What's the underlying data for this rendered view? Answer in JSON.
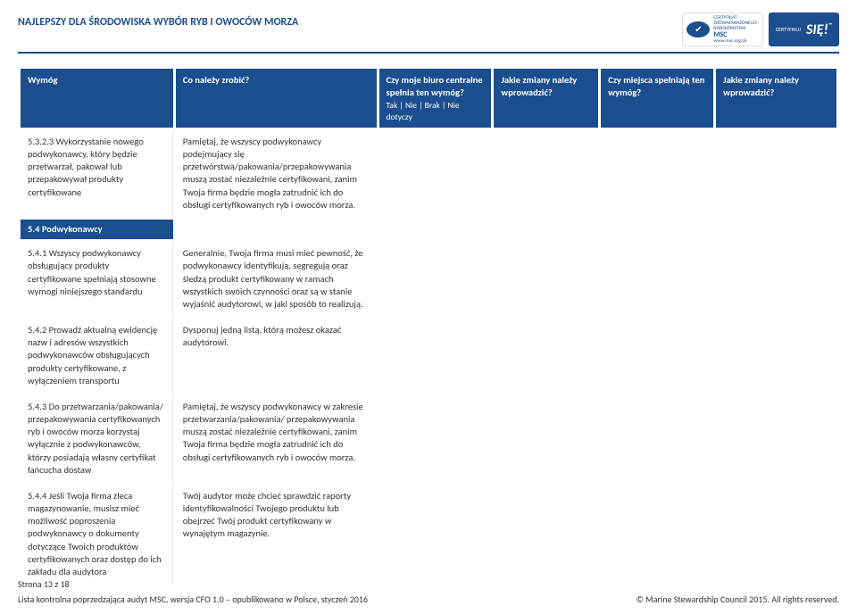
{
  "doc_title": "NAJLEPSZY DLA ŚRODOWISKA WYBÓR RYB I OWOCÓW MORZA",
  "logo_msc": {
    "line1": "CERTYFIKAT",
    "line2": "ZRÓWNOWAŻONEGO",
    "line3": "RYBOŁÓWSTWA",
    "brand": "MSC",
    "url": "www.msc.org/pl"
  },
  "logo_sie": {
    "label": "CERTYFIKUJ",
    "big": "SIĘ!"
  },
  "headers": {
    "c1": "Wymóg",
    "c2": "Co należy zrobić?",
    "c3": "Czy moje biuro centralne spełnia ten wymóg?",
    "c3_sub": "Tak | Nie | Brak | Nie dotyczy",
    "c4": "Jakie zmiany należy wprowadzić?",
    "c5": "Czy miejsca spełniają ten wymóg?",
    "c6": "Jakie zmiany należy wprowadzić?"
  },
  "col_widths": {
    "c1": "19%",
    "c2": "25%",
    "c3": "14%",
    "c4": "13%",
    "c5": "14%",
    "c6": "15%"
  },
  "rows": [
    {
      "req": "5.3.2.3 Wykorzystanie nowego podwykonawcy, który będzie przetwarzał, pakował lub przepakowywał produkty certyfikowane",
      "action": "Pamiętaj, że wszyscy podwykonawcy podejmujący się przetwórstwa/pakowania/przepakowywania muszą zostać niezależnie certyfikowani, zanim Twoja firma będzie mogła zatrudnić ich do obsługi certyfikowanych ryb i owoców morza."
    }
  ],
  "section_label": "5.4 Podwykonawcy",
  "rows2": [
    {
      "req": "5.4.1 Wszyscy podwykonawcy obsługujący produkty certyfikowane spełniają stosowne wymogi niniejszego standardu",
      "action": "Generalnie, Twoja firma musi mieć pewność, że podwykonawcy identyfikują, segregują oraz śledzą produkt certyfikowany w ramach wszystkich swoich czynności oraz są w stanie wyjaśnić audytorowi, w jaki sposób to realizują."
    },
    {
      "req": "5.4.2 Prowadź aktualną ewidencję nazw i adresów wszystkich podwykonawców obsługujących produkty certyfikowane, z wyłączeniem transportu",
      "action": "Dysponuj jedną listą, którą możesz okazać audytorowi."
    },
    {
      "req": "5.4.3 Do przetwarzania/pakowania/ przepakowywania certyfikowanych ryb i owoców morza korzystaj wyłącznie z podwykonawców, którzy posiadają własny certyfikat łańcucha dostaw",
      "action": "Pamiętaj, że wszyscy podwykonawcy w zakresie przetwarzania/pakowania/ przepakowywania muszą zostać niezależnie certyfikowani, zanim Twoja firma będzie mogła zatrudnić ich do obsługi certyfikowanych ryb i owoców morza."
    },
    {
      "req": "5.4.4 Jeśli Twoja firma zleca magazynowanie, musisz mieć możliwość poproszenia podwykonawcy o dokumenty dotyczące Twoich produktów certyfikowanych oraz dostęp do ich zakładu dla audytora",
      "action": "Twój audytor może chcieć sprawdzić raporty identyfikowalności Twojego produktu lub obejrzeć Twój produkt certyfikowany w wynajętym magazynie."
    }
  ],
  "footer": {
    "page": "Strona 13 z 18",
    "doc_version": "Lista kontrolna poprzedzająca audyt MSC, wersja CFO 1.0 – opublikowano w Polsce, styczeń 2016",
    "copyright": "© Marine Stewardship Council 2015. All rights reserved."
  },
  "colors": {
    "brand": "#1a4e8e",
    "text": "#333333",
    "border": "#e8e8e8"
  }
}
